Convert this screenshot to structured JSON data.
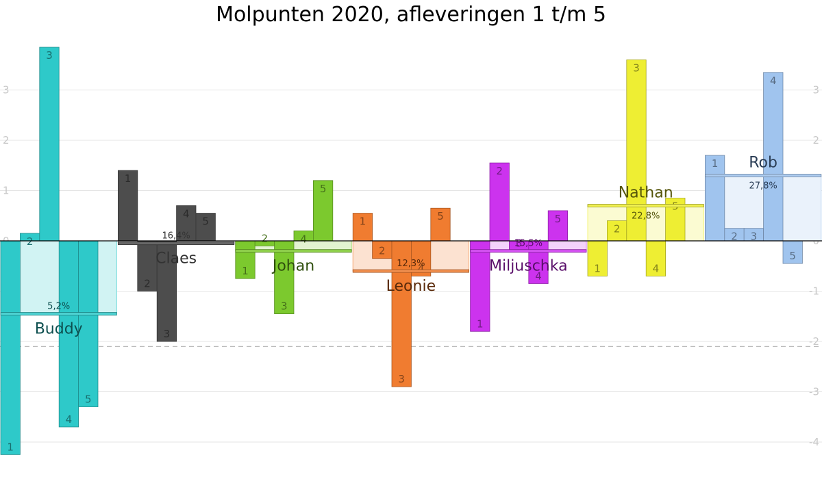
{
  "chart_data": {
    "type": "bar",
    "title": "Molpunten 2020, afleveringen 1 t/m 5",
    "xlabel": "",
    "ylabel": "",
    "ylim": [
      -4.2,
      3.8
    ],
    "y_ticks": [
      -4,
      -3,
      -2,
      -1,
      0,
      1,
      2,
      3
    ],
    "grid": true,
    "reference_line": -2.1,
    "episodes": [
      "1",
      "2",
      "3",
      "4",
      "5"
    ],
    "series": [
      {
        "name": "Buddy",
        "color": "#2ec9c9",
        "label_color": "#0d4f4f",
        "values": [
          -4.25,
          0.15,
          3.85,
          -3.7,
          -3.3
        ],
        "average": -1.45,
        "percentage": "5,2%"
      },
      {
        "name": "Claes",
        "color": "#4d4d4d",
        "label_color": "#333333",
        "values": [
          1.4,
          -1.0,
          -2.0,
          0.7,
          0.55
        ],
        "average": -0.05,
        "percentage": "16,4%"
      },
      {
        "name": "Johan",
        "color": "#7cc92e",
        "label_color": "#2f4f0d",
        "values": [
          -0.75,
          -0.1,
          -1.45,
          0.2,
          1.2
        ],
        "average": -0.2,
        "percentage": ""
      },
      {
        "name": "Leonie",
        "color": "#f07c30",
        "label_color": "#5a2a0a",
        "values": [
          0.55,
          -0.35,
          -2.9,
          -0.7,
          0.65
        ],
        "average": -0.6,
        "percentage": "12,3%"
      },
      {
        "name": "Miljuschka",
        "color": "#cc33ee",
        "label_color": "#5a0f6a",
        "values": [
          -1.8,
          1.55,
          -0.2,
          -0.85,
          0.6
        ],
        "average": -0.2,
        "percentage": "15,5%"
      },
      {
        "name": "Nathan",
        "color": "#eeee33",
        "label_color": "#55550a",
        "values": [
          -0.7,
          0.4,
          3.6,
          -0.7,
          0.85
        ],
        "average": 0.7,
        "percentage": "22,8%"
      },
      {
        "name": "Rob",
        "color": "#a0c4ee",
        "label_color": "#2a3d55",
        "values": [
          1.7,
          0.25,
          0.25,
          3.35,
          -0.45
        ],
        "average": 1.3,
        "percentage": "27,8%"
      }
    ]
  }
}
